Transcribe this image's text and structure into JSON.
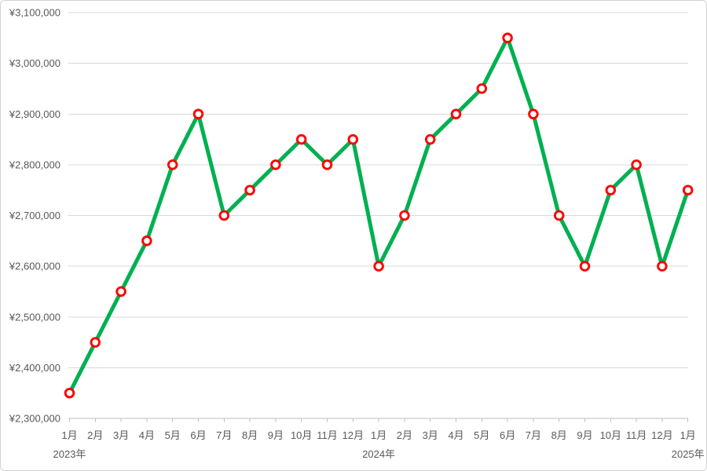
{
  "chart_data": {
    "type": "line",
    "title": "",
    "legend": "none",
    "grid": true,
    "categories": [
      "1月",
      "2月",
      "3月",
      "4月",
      "5月",
      "6月",
      "7月",
      "8月",
      "9月",
      "10月",
      "11月",
      "12月",
      "1月",
      "2月",
      "3月",
      "4月",
      "5月",
      "6月",
      "7月",
      "8月",
      "9月",
      "10月",
      "11月",
      "12月",
      "1月"
    ],
    "values": [
      2350000,
      2450000,
      2550000,
      2650000,
      2800000,
      2900000,
      2700000,
      2750000,
      2800000,
      2850000,
      2800000,
      2850000,
      2600000,
      2700000,
      2850000,
      2900000,
      2950000,
      3050000,
      2900000,
      2700000,
      2600000,
      2750000,
      2800000,
      2600000,
      2750000
    ],
    "year_groups": [
      {
        "label": "2023年",
        "start_index": 0
      },
      {
        "label": "2024年",
        "start_index": 12
      },
      {
        "label": "2025年",
        "start_index": 24
      }
    ],
    "ylim": [
      2300000,
      3100000
    ],
    "y_tick_step": 100000,
    "y_tick_labels": [
      "¥2,300,000",
      "¥2,400,000",
      "¥2,500,000",
      "¥2,600,000",
      "¥2,700,000",
      "¥2,800,000",
      "¥2,900,000",
      "¥3,000,000",
      "¥3,100,000"
    ],
    "colors": {
      "line": "#00B050",
      "marker_stroke": "#FF0000",
      "marker_fill": "#FFFFFF",
      "gridline": "#D9D9D9",
      "axis_line": "#BFBFBF",
      "label_text": "#595959"
    }
  }
}
